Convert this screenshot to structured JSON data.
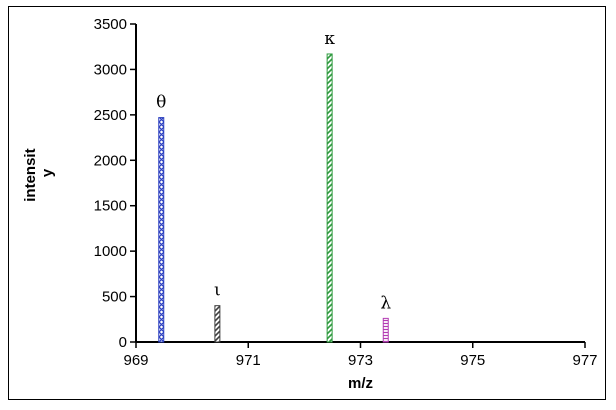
{
  "chart_data": {
    "type": "bar",
    "title": "",
    "xlabel": "m/z",
    "ylabel_lines": [
      "intensit",
      "y"
    ],
    "xlim": [
      969,
      977
    ],
    "ylim": [
      0,
      3500
    ],
    "xticks": [
      969,
      971,
      973,
      975,
      977
    ],
    "yticks": [
      0,
      500,
      1000,
      1500,
      2000,
      2500,
      3000,
      3500
    ],
    "grid": false,
    "legend": "none",
    "peaks": [
      {
        "label": "θ",
        "x": 969.45,
        "y": 2470,
        "color": "#2b3fbf",
        "pattern": "crosshatch"
      },
      {
        "label": "ι",
        "x": 970.45,
        "y": 400,
        "color": "#404040",
        "pattern": "diagonal"
      },
      {
        "label": "κ",
        "x": 972.45,
        "y": 3170,
        "color": "#2e9a3e",
        "pattern": "diagonal"
      },
      {
        "label": "λ",
        "x": 973.45,
        "y": 260,
        "color": "#b33bb3",
        "pattern": "horizontal"
      }
    ]
  }
}
